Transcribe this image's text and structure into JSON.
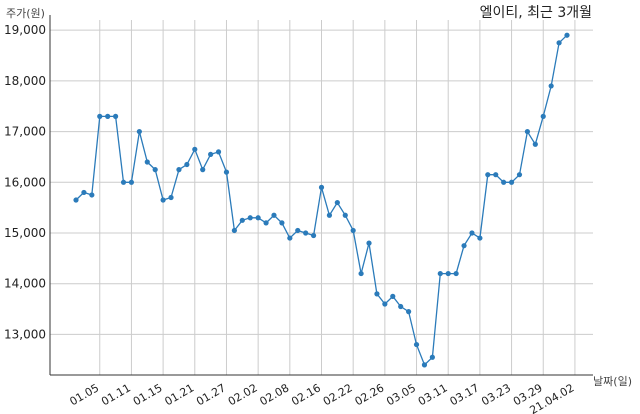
{
  "chart_data": {
    "type": "line",
    "title": "엘이티, 최근 3개월",
    "ylabel": "주가(원)",
    "xlabel": "날짜(일)",
    "ylim": [
      12200,
      19200
    ],
    "yticks": [
      13000,
      14000,
      15000,
      16000,
      17000,
      18000,
      19000
    ],
    "ytick_labels": [
      "13,000",
      "14,000",
      "15,000",
      "16,000",
      "17,000",
      "18,000",
      "19,000"
    ],
    "grid": true,
    "line_color": "#2b7bba",
    "grid_color": "#cccccc",
    "xticks": [
      {
        "index": 3,
        "label": "01.05"
      },
      {
        "index": 7,
        "label": "01.11"
      },
      {
        "index": 11,
        "label": "01.15"
      },
      {
        "index": 15,
        "label": "01.21"
      },
      {
        "index": 19,
        "label": "01.27"
      },
      {
        "index": 23,
        "label": "02.02"
      },
      {
        "index": 27,
        "label": "02.08"
      },
      {
        "index": 31,
        "label": "02.16"
      },
      {
        "index": 35,
        "label": "02.22"
      },
      {
        "index": 39,
        "label": "02.26"
      },
      {
        "index": 43,
        "label": "03.05"
      },
      {
        "index": 47,
        "label": "03.11"
      },
      {
        "index": 51,
        "label": "03.17"
      },
      {
        "index": 55,
        "label": "03.23"
      },
      {
        "index": 59,
        "label": "03.29"
      },
      {
        "index": 63,
        "label": "21.04.02"
      }
    ],
    "series": [
      {
        "values": [
          15650,
          15800,
          15750,
          17300,
          17300,
          17300,
          16000,
          16000,
          17000,
          16400,
          16250,
          15650,
          15700,
          16250,
          16350,
          16650,
          16250,
          16550,
          16600,
          16200,
          15050,
          15250,
          15300,
          15300,
          15200,
          15350,
          15200,
          14900,
          15050,
          15000,
          14950,
          15900,
          15350,
          15600,
          15350,
          15050,
          14200,
          14800,
          13800,
          13600,
          13750,
          13550,
          13450,
          12800,
          12400,
          12550,
          14200,
          14200,
          14200,
          14750,
          15000,
          14900,
          16150,
          16150,
          16000,
          16000,
          16150,
          17000,
          16750,
          17300,
          17900,
          18750,
          18900
        ]
      }
    ]
  }
}
